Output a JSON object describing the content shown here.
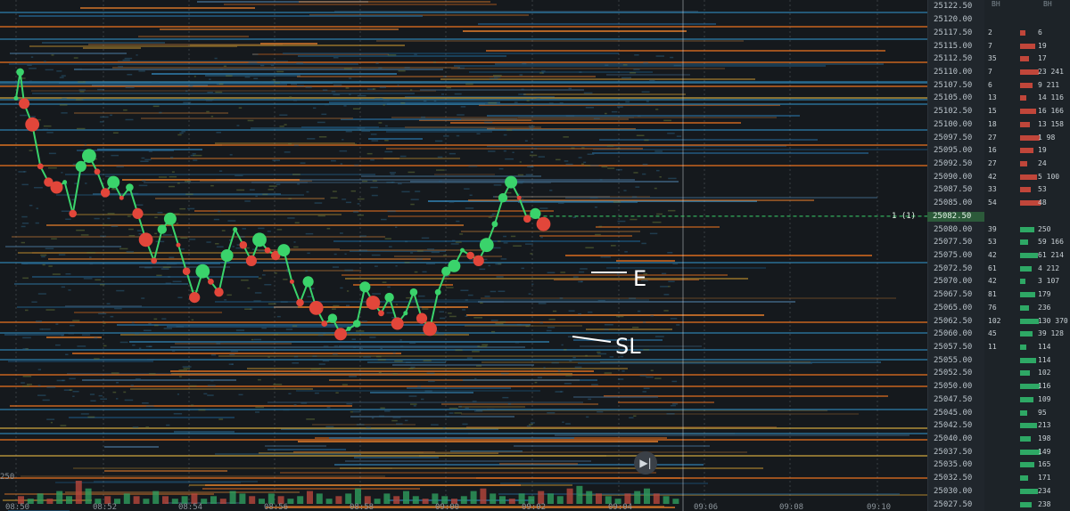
{
  "chart_data": {
    "type": "heatmap",
    "title": "",
    "xlabel": "",
    "ylabel": "",
    "ylim": [
      25026.25,
      25123.75
    ],
    "time_ticks": [
      "08:50",
      "08:52",
      "08:54",
      "08:56",
      "08:58",
      "09:00",
      "09:02",
      "09:04",
      "09:06",
      "09:08",
      "09:10"
    ],
    "price_ticks": [
      25122.5,
      25120.0,
      25117.5,
      25115.0,
      25112.5,
      25110.0,
      25107.5,
      25105.0,
      25102.5,
      25100.0,
      25097.5,
      25095.0,
      25092.5,
      25090.0,
      25087.5,
      25085.0,
      25082.5,
      25080.0,
      25077.5,
      25075.0,
      25072.5,
      25070.0,
      25067.5,
      25065.0,
      25062.5,
      25060.0,
      25057.5,
      25055.0,
      25052.5,
      25050.0,
      25047.5,
      25045.0,
      25042.5,
      25040.0,
      25037.5,
      25035.0,
      25032.5,
      25030.0,
      25027.5
    ],
    "y_axis_left_partial_label": "250",
    "price_path": [
      [
        8.5,
        25105
      ],
      [
        8.75,
        25110
      ],
      [
        9.0,
        25104
      ],
      [
        9.5,
        25100
      ],
      [
        10,
        25092
      ],
      [
        10.5,
        25089
      ],
      [
        11,
        25088
      ],
      [
        11.5,
        25089
      ],
      [
        12,
        25083
      ],
      [
        12.5,
        25092
      ],
      [
        13,
        25094
      ],
      [
        13.5,
        25091
      ],
      [
        14,
        25087
      ],
      [
        14.5,
        25089
      ],
      [
        15,
        25086
      ],
      [
        15.5,
        25088
      ],
      [
        16,
        25083
      ],
      [
        16.5,
        25078
      ],
      [
        17,
        25074
      ],
      [
        17.5,
        25080
      ],
      [
        18,
        25082
      ],
      [
        18.5,
        25077
      ],
      [
        19,
        25072
      ],
      [
        19.5,
        25067
      ],
      [
        20,
        25072
      ],
      [
        20.5,
        25070
      ],
      [
        21,
        25068
      ],
      [
        21.5,
        25075
      ],
      [
        22,
        25080
      ],
      [
        22.5,
        25077
      ],
      [
        23,
        25074
      ],
      [
        23.5,
        25078
      ],
      [
        24,
        25076
      ],
      [
        24.5,
        25075
      ],
      [
        25,
        25076
      ],
      [
        25.5,
        25070
      ],
      [
        26,
        25066
      ],
      [
        26.5,
        25070
      ],
      [
        27,
        25065
      ],
      [
        27.5,
        25062
      ],
      [
        28,
        25063
      ],
      [
        28.5,
        25060
      ],
      [
        29,
        25061
      ],
      [
        29.5,
        25062
      ],
      [
        30,
        25069
      ],
      [
        30.5,
        25066
      ],
      [
        31,
        25064
      ],
      [
        31.5,
        25067
      ],
      [
        32,
        25062
      ],
      [
        32.5,
        25064
      ],
      [
        33,
        25068
      ],
      [
        33.5,
        25063
      ],
      [
        34,
        25061
      ],
      [
        34.5,
        25068
      ],
      [
        35,
        25072
      ],
      [
        35.5,
        25073
      ],
      [
        36,
        25076
      ],
      [
        36.5,
        25075
      ],
      [
        37,
        25074
      ],
      [
        37.5,
        25077
      ],
      [
        38,
        25081
      ],
      [
        38.5,
        25086
      ],
      [
        39,
        25089
      ],
      [
        39.5,
        25086
      ],
      [
        40,
        25082
      ],
      [
        40.5,
        25083
      ],
      [
        41,
        25081
      ]
    ],
    "volume_bars": [
      3,
      2,
      4,
      2,
      5,
      3,
      9,
      6,
      2,
      3,
      2,
      4,
      3,
      2,
      5,
      3,
      2,
      3,
      4,
      2,
      3,
      2,
      5,
      4,
      3,
      2,
      4,
      3,
      2,
      3,
      5,
      4,
      2,
      3,
      4,
      6,
      3,
      2,
      4,
      3,
      5,
      3,
      2,
      4,
      3,
      2,
      3,
      5,
      6,
      4,
      3,
      2,
      4,
      3,
      5,
      4,
      3,
      6,
      7,
      5,
      4,
      3,
      2,
      4,
      5,
      6,
      4,
      3,
      2,
      3
    ],
    "current_price": 25082.5,
    "entry_level": 25073.0,
    "stop_level": 25059.5
  },
  "annotations": {
    "entry": "E",
    "stop": "SL"
  },
  "current_price_label": "25082.50",
  "order_badge": "1 (1)",
  "partial_price_top": "25122.50",
  "dom_headers": {
    "bid": "BH",
    "ask": "BH"
  },
  "dom_rows": [
    {
      "p": "25117.50",
      "a": "2",
      "b": "6"
    },
    {
      "p": "25115.00",
      "a": "7",
      "b": "19"
    },
    {
      "p": "25112.50",
      "a": "35",
      "b": "17"
    },
    {
      "p": "25110.00",
      "a": "7",
      "b": "23 241"
    },
    {
      "p": "25107.50",
      "a": "6",
      "b": "9 211"
    },
    {
      "p": "25105.00",
      "a": "13",
      "b": "14 116"
    },
    {
      "p": "25102.50",
      "a": "15",
      "b": "16 166"
    },
    {
      "p": "25100.00",
      "a": "18",
      "b": "13 158"
    },
    {
      "p": "25097.50",
      "a": "27",
      "b": "1 98"
    },
    {
      "p": "25095.00",
      "a": "16",
      "b": "19"
    },
    {
      "p": "25092.50",
      "a": "27",
      "b": "24"
    },
    {
      "p": "25090.00",
      "a": "42",
      "b": "5 100"
    },
    {
      "p": "25087.50",
      "a": "33",
      "b": "53"
    },
    {
      "p": "25085.00",
      "a": "54",
      "b": "48"
    },
    {
      "p": "25080.00",
      "a": "39",
      "b": "250"
    },
    {
      "p": "25077.50",
      "a": "53",
      "b": "59 166"
    },
    {
      "p": "25075.00",
      "a": "42",
      "b": "61 214"
    },
    {
      "p": "25072.50",
      "a": "61",
      "b": "4 212"
    },
    {
      "p": "25070.00",
      "a": "42",
      "b": "3 107"
    },
    {
      "p": "25067.50",
      "a": "81",
      "b": "179"
    },
    {
      "p": "25065.00",
      "a": "76",
      "b": "236"
    },
    {
      "p": "25062.50",
      "a": "102",
      "b": "130 370"
    },
    {
      "p": "25060.00",
      "a": "45",
      "b": "39 128"
    },
    {
      "p": "25057.50",
      "a": "11",
      "b": "114"
    },
    {
      "p": "25055.00",
      "a": "",
      "b": "114"
    },
    {
      "p": "25052.50",
      "a": "",
      "b": "102"
    },
    {
      "p": "25050.00",
      "a": "",
      "b": "116"
    },
    {
      "p": "25047.50",
      "a": "",
      "b": "109"
    },
    {
      "p": "25045.00",
      "a": "",
      "b": "95"
    },
    {
      "p": "25042.50",
      "a": "",
      "b": "213"
    },
    {
      "p": "25040.00",
      "a": "",
      "b": "198"
    },
    {
      "p": "25037.50",
      "a": "",
      "b": "149"
    },
    {
      "p": "25035.00",
      "a": "",
      "b": "165"
    },
    {
      "p": "25032.50",
      "a": "",
      "b": "171"
    },
    {
      "p": "25030.00",
      "a": "",
      "b": "234"
    },
    {
      "p": "25027.50",
      "a": "",
      "b": "238"
    }
  ],
  "colors": {
    "up": "#3ad36b",
    "down": "#e2463a",
    "bid": "#2ea865",
    "ask": "#c0463a",
    "price_line": "#3ad36b"
  },
  "play_icon": "play-next-icon"
}
